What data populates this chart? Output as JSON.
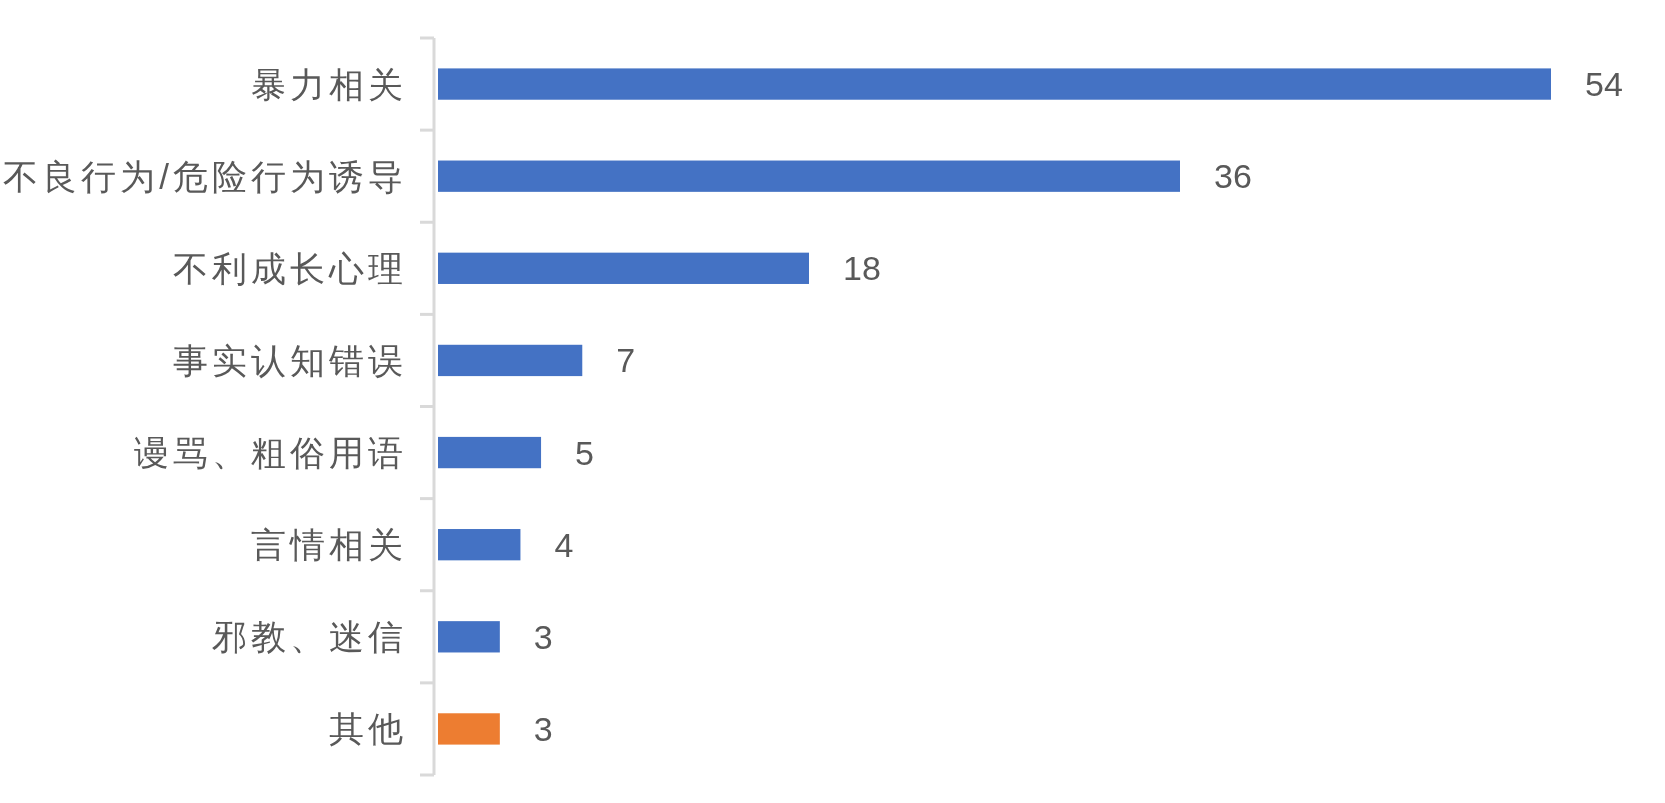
{
  "chart_data": {
    "type": "bar",
    "orientation": "horizontal",
    "categories": [
      "暴力相关",
      "不良行为/危险行为诱导",
      "不利成长心理",
      "事实认知错误",
      "谩骂、粗俗用语",
      "言情相关",
      "邪教、迷信",
      "其他"
    ],
    "values": [
      54,
      36,
      18,
      7,
      5,
      4,
      3,
      3
    ],
    "colors": [
      "#4472c4",
      "#4472c4",
      "#4472c4",
      "#4472c4",
      "#4472c4",
      "#4472c4",
      "#4472c4",
      "#ed7d31"
    ],
    "data_labels": true
  }
}
